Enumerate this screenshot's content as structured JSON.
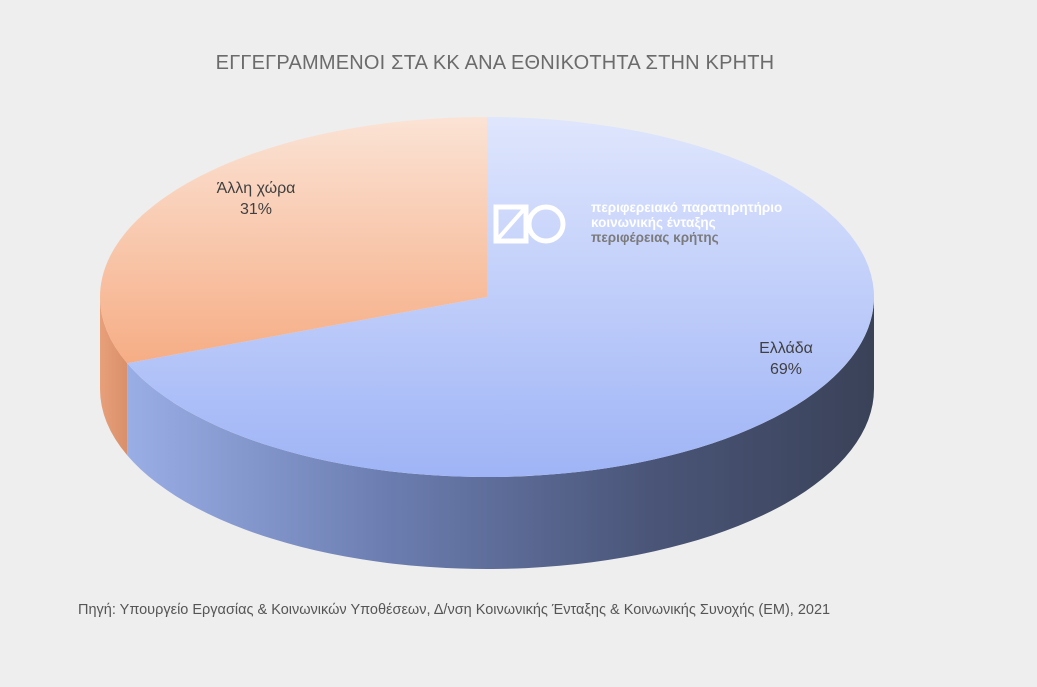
{
  "chart_data": {
    "type": "pie",
    "title": "ΕΓΓΕΓΡΑΜΜΕΝΟΙ ΣΤΑ ΚΚ ΑΝΑ ΕΘΝΙΚΟΤΗΤΑ ΣΤΗΝ ΚΡΗΤΗ",
    "slices": [
      {
        "label": "Ελλάδα",
        "value": 69,
        "display": "69%",
        "color": "#a9bdf8"
      },
      {
        "label": "Άλλη χώρα",
        "value": 31,
        "display": "31%",
        "color": "#f7bb9a"
      }
    ]
  },
  "logo": {
    "line1": "περιφερειακό παρατηρητήριο",
    "line2": "κοινωνικής ένταξης",
    "line3": "περιφέρειας κρήτης"
  },
  "source": "Πηγή: Υπουργείο Εργασίας & Κοινωνικών Υποθέσεων, Δ/νση Κοινωνικής Ένταξης & Κοινωνικής Συνοχής (ΕΜ), 2021",
  "colors": {
    "background": "#eeeeee",
    "greece_top": "#a9bdf8",
    "greece_side_dark": "#3d4660",
    "other_top": "#f7bb9a"
  }
}
